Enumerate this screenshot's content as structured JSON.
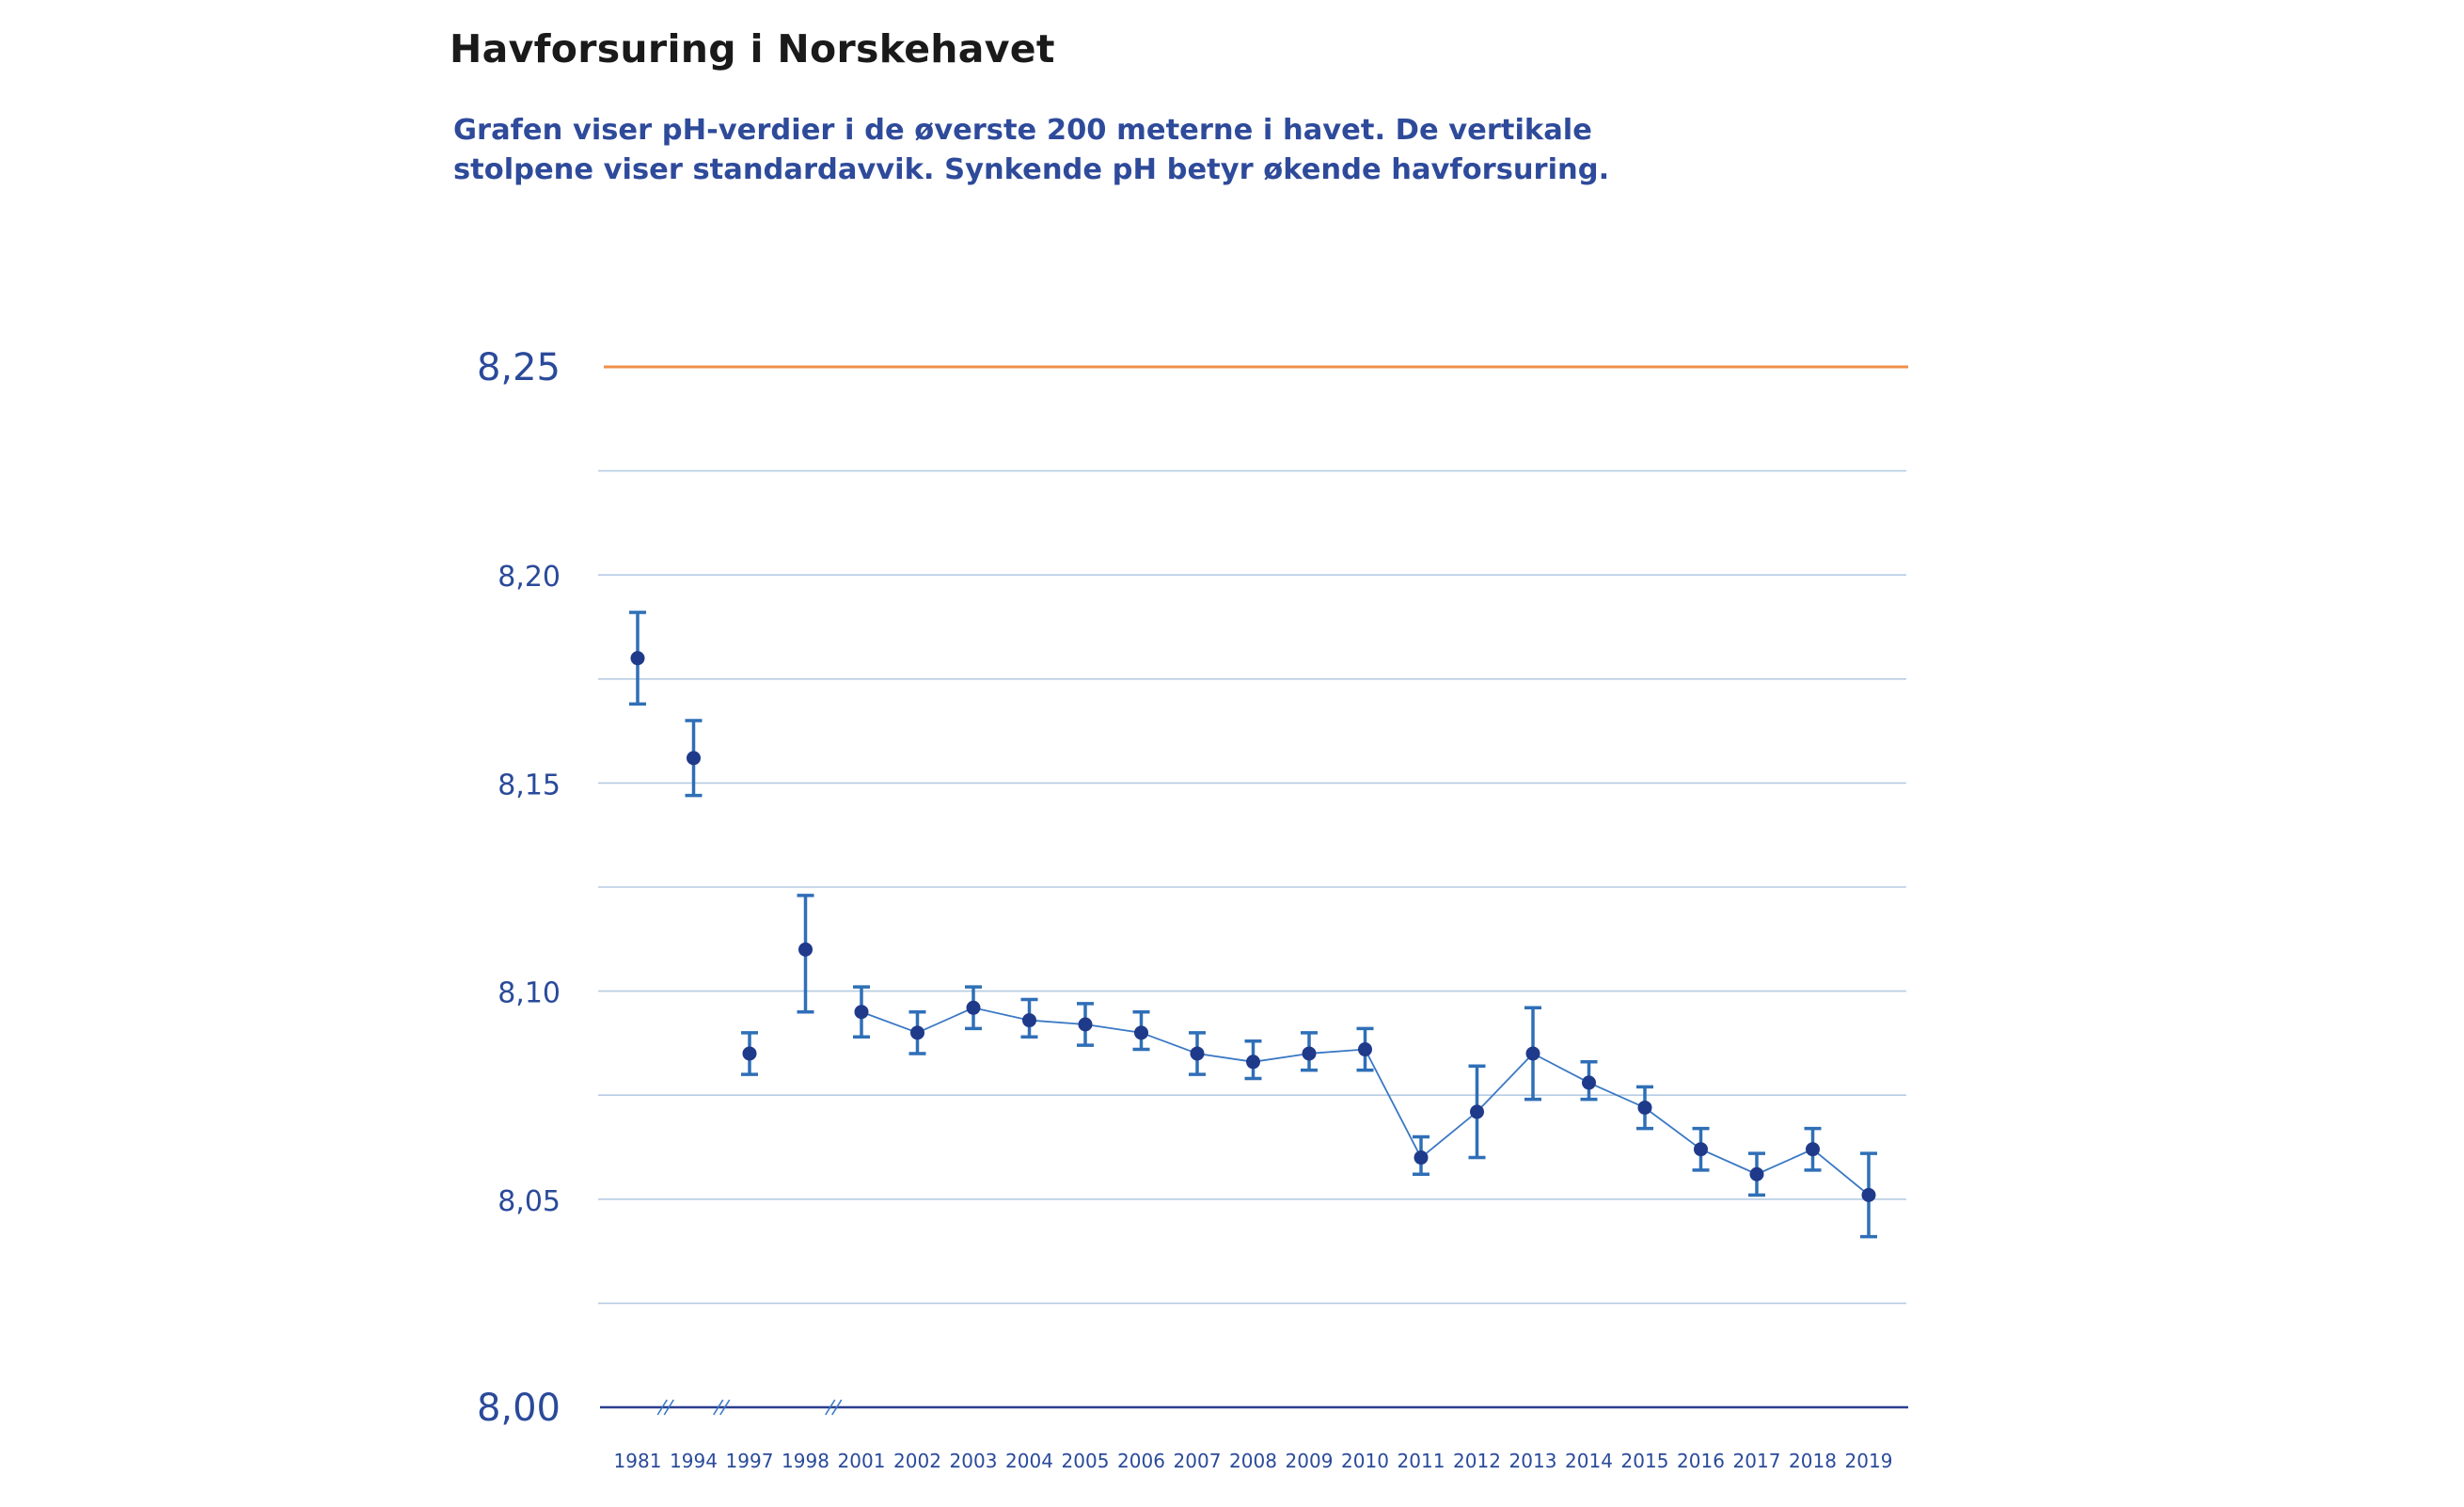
{
  "title": "Havforsuring i Norskehavet",
  "subtitle_lines": [
    "Grafen viser pH-verdier i de øverste 200 meterne i havet. De vertikale",
    "stolpene viser standardavvik. Synkende pH betyr økende havforsuring."
  ],
  "colors": {
    "series": "#1f3a8a",
    "line": "#3a78c4",
    "errorbar": "#2f6fb7",
    "reference": "#f0904a",
    "grid": "#b6cce3",
    "axis": "#2a3f8f",
    "tick_text": "#2a4a9a"
  },
  "chart_data": {
    "type": "line",
    "title": "Havforsuring i Norskehavet",
    "xlabel": "",
    "ylabel": "",
    "ylim": [
      8.0,
      8.25
    ],
    "yticks": [
      "8,00",
      "8,05",
      "8,10",
      "8,15",
      "8,20",
      "8,25"
    ],
    "ytick_values": [
      8.0,
      8.05,
      8.1,
      8.15,
      8.2,
      8.25
    ],
    "grid": true,
    "reference_line": {
      "y": 8.25,
      "color": "#f0904a"
    },
    "axis_breaks_after": [
      "1981",
      "1994",
      "1998"
    ],
    "categories": [
      "1981",
      "1994",
      "1997",
      "1998",
      "2001",
      "2002",
      "2003",
      "2004",
      "2005",
      "2006",
      "2007",
      "2008",
      "2009",
      "2010",
      "2011",
      "2012",
      "2013",
      "2014",
      "2015",
      "2016",
      "2017",
      "2018",
      "2019"
    ],
    "series": [
      {
        "values": [
          8.18,
          8.156,
          8.085,
          8.11,
          8.095,
          8.09,
          8.096,
          8.093,
          8.092,
          8.09,
          8.085,
          8.083,
          8.085,
          8.086,
          8.06,
          8.071,
          8.085,
          8.078,
          8.072,
          8.062,
          8.056,
          8.062,
          8.051
        ],
        "lower": [
          8.169,
          8.147,
          8.08,
          8.095,
          8.089,
          8.085,
          8.091,
          8.089,
          8.087,
          8.086,
          8.08,
          8.079,
          8.081,
          8.081,
          8.056,
          8.06,
          8.074,
          8.074,
          8.067,
          8.057,
          8.051,
          8.057,
          8.041
        ],
        "upper": [
          8.191,
          8.165,
          8.09,
          8.123,
          8.101,
          8.095,
          8.101,
          8.098,
          8.097,
          8.095,
          8.09,
          8.088,
          8.09,
          8.091,
          8.065,
          8.082,
          8.096,
          8.083,
          8.077,
          8.067,
          8.061,
          8.067,
          8.061
        ],
        "connected_from_index": 4
      }
    ]
  }
}
